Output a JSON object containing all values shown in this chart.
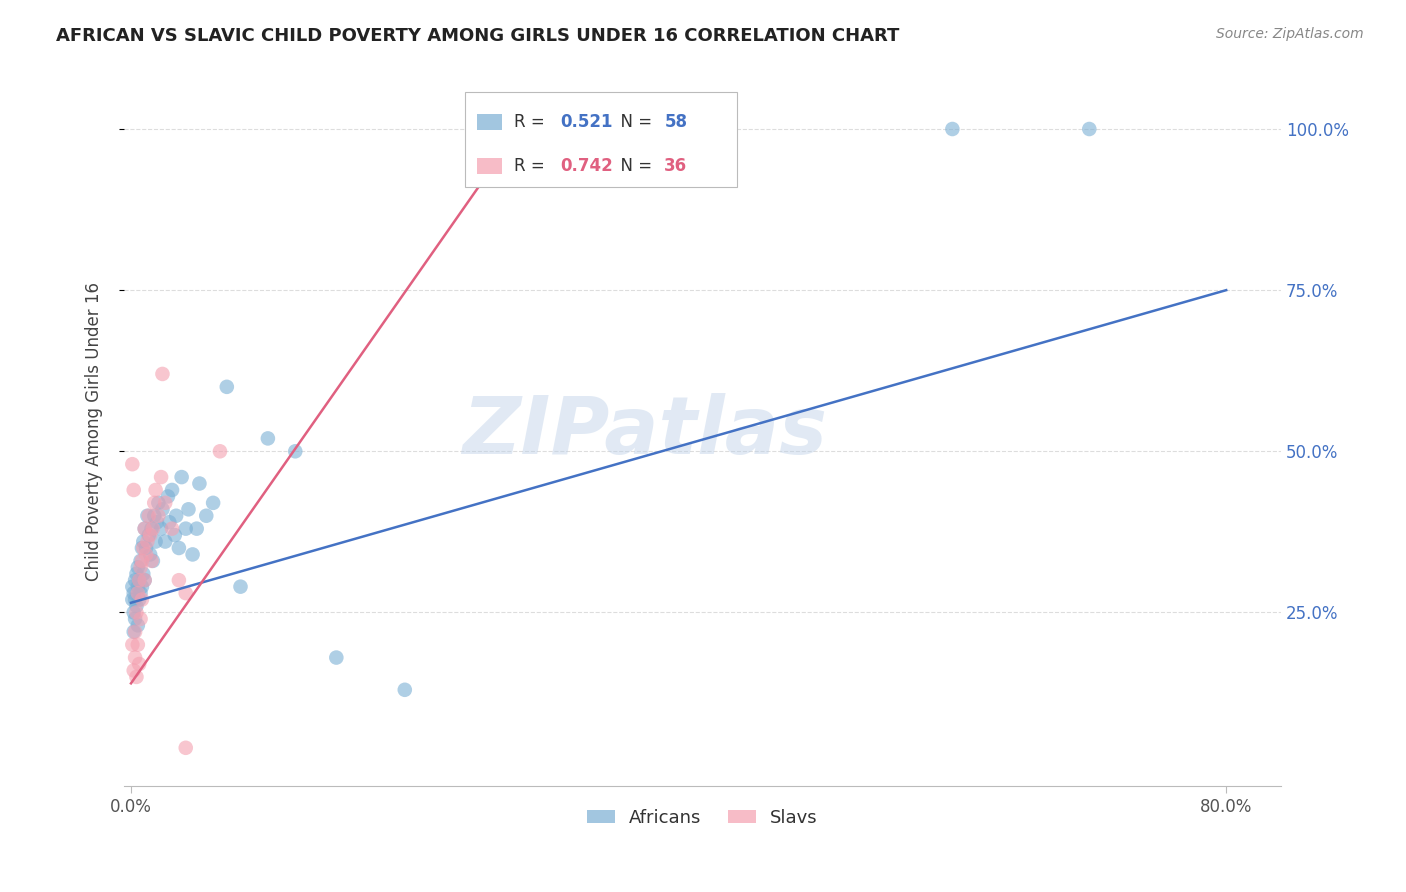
{
  "title": "AFRICAN VS SLAVIC CHILD POVERTY AMONG GIRLS UNDER 16 CORRELATION CHART",
  "source": "Source: ZipAtlas.com",
  "ylabel_label": "Child Poverty Among Girls Under 16",
  "watermark": "ZIPatlas",
  "african_R": "0.521",
  "african_N": "58",
  "slavic_R": "0.742",
  "slavic_N": "36",
  "african_color": "#7BAFD4",
  "slavic_color": "#F4A0B0",
  "african_line_color": "#4472C4",
  "slavic_line_color": "#E06080",
  "legend_african": "Africans",
  "legend_slavic": "Slavs",
  "african_scatter_x": [
    0.001,
    0.001,
    0.002,
    0.002,
    0.002,
    0.003,
    0.003,
    0.003,
    0.004,
    0.004,
    0.005,
    0.005,
    0.005,
    0.006,
    0.006,
    0.007,
    0.007,
    0.008,
    0.008,
    0.009,
    0.009,
    0.01,
    0.01,
    0.011,
    0.012,
    0.013,
    0.014,
    0.015,
    0.016,
    0.017,
    0.018,
    0.019,
    0.02,
    0.022,
    0.023,
    0.025,
    0.027,
    0.028,
    0.03,
    0.032,
    0.033,
    0.035,
    0.037,
    0.04,
    0.042,
    0.045,
    0.048,
    0.05,
    0.055,
    0.06,
    0.07,
    0.08,
    0.1,
    0.12,
    0.15,
    0.2,
    0.6,
    0.7
  ],
  "african_scatter_y": [
    0.27,
    0.29,
    0.22,
    0.25,
    0.28,
    0.24,
    0.27,
    0.3,
    0.26,
    0.31,
    0.23,
    0.29,
    0.32,
    0.27,
    0.3,
    0.28,
    0.33,
    0.29,
    0.35,
    0.31,
    0.36,
    0.3,
    0.38,
    0.35,
    0.4,
    0.37,
    0.34,
    0.38,
    0.33,
    0.4,
    0.36,
    0.39,
    0.42,
    0.38,
    0.41,
    0.36,
    0.43,
    0.39,
    0.44,
    0.37,
    0.4,
    0.35,
    0.46,
    0.38,
    0.41,
    0.34,
    0.38,
    0.45,
    0.4,
    0.42,
    0.6,
    0.29,
    0.52,
    0.5,
    0.18,
    0.13,
    1.0,
    1.0
  ],
  "slavic_scatter_x": [
    0.001,
    0.001,
    0.002,
    0.002,
    0.003,
    0.003,
    0.004,
    0.004,
    0.005,
    0.005,
    0.006,
    0.006,
    0.007,
    0.007,
    0.008,
    0.008,
    0.009,
    0.01,
    0.01,
    0.011,
    0.012,
    0.013,
    0.014,
    0.015,
    0.016,
    0.017,
    0.018,
    0.02,
    0.022,
    0.023,
    0.025,
    0.03,
    0.035,
    0.04,
    0.04,
    0.065
  ],
  "slavic_scatter_y": [
    0.48,
    0.2,
    0.44,
    0.16,
    0.18,
    0.22,
    0.25,
    0.15,
    0.28,
    0.2,
    0.3,
    0.17,
    0.32,
    0.24,
    0.27,
    0.33,
    0.35,
    0.3,
    0.38,
    0.34,
    0.36,
    0.4,
    0.37,
    0.33,
    0.38,
    0.42,
    0.44,
    0.4,
    0.46,
    0.62,
    0.42,
    0.38,
    0.3,
    0.28,
    0.04,
    0.5
  ],
  "african_line_x": [
    0.0,
    0.8
  ],
  "african_line_y": [
    0.265,
    0.75
  ],
  "slavic_line_x": [
    0.0,
    0.3
  ],
  "slavic_line_y": [
    0.14,
    1.05
  ],
  "xlim": [
    -0.005,
    0.84
  ],
  "ylim": [
    -0.02,
    1.08
  ],
  "yticks": [
    0.25,
    0.5,
    0.75,
    1.0
  ],
  "ytick_labels": [
    "25.0%",
    "50.0%",
    "75.0%",
    "100.0%"
  ],
  "xticks": [
    0.0,
    0.8
  ],
  "xtick_labels": [
    "0.0%",
    "80.0%"
  ],
  "bg_color": "#FFFFFF",
  "grid_color": "#DDDDDD"
}
